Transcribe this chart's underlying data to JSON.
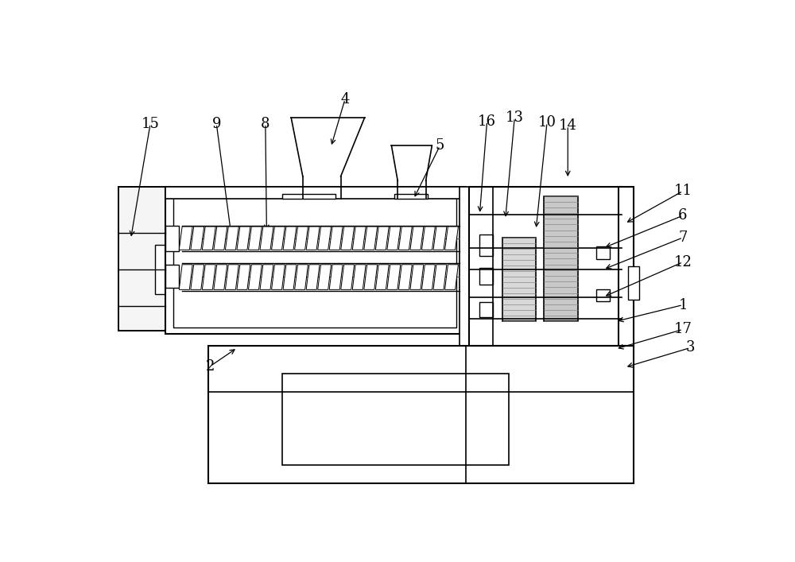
{
  "bg_color": "#ffffff",
  "lc": "#000000",
  "lw": 1.2,
  "label_fs": 13,
  "labels": [
    [
      "15",
      80,
      92,
      48,
      280
    ],
    [
      "9",
      188,
      92,
      215,
      295
    ],
    [
      "8",
      268,
      92,
      270,
      270
    ],
    [
      "4",
      398,
      52,
      375,
      130
    ],
    [
      "5",
      553,
      128,
      510,
      215
    ],
    [
      "16",
      630,
      88,
      618,
      240
    ],
    [
      "13",
      675,
      82,
      660,
      248
    ],
    [
      "10",
      728,
      90,
      710,
      265
    ],
    [
      "14",
      762,
      95,
      762,
      182
    ],
    [
      "11",
      950,
      202,
      855,
      255
    ],
    [
      "6",
      950,
      242,
      820,
      295
    ],
    [
      "7",
      950,
      278,
      820,
      330
    ],
    [
      "12",
      950,
      318,
      820,
      375
    ],
    [
      "1",
      950,
      388,
      840,
      415
    ],
    [
      "2",
      178,
      488,
      222,
      458
    ],
    [
      "17",
      950,
      428,
      840,
      460
    ],
    [
      "3",
      962,
      458,
      855,
      490
    ]
  ]
}
